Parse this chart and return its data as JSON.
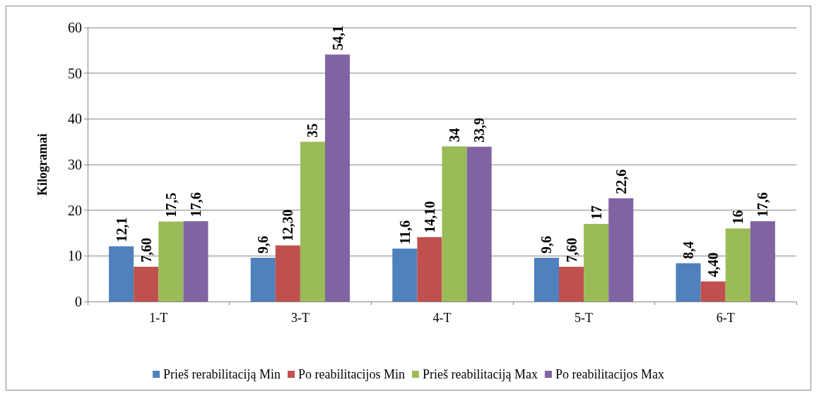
{
  "chart_data": {
    "type": "bar",
    "ylabel": "Kilogramai",
    "categories": [
      "1-T",
      "3-T",
      "4-T",
      "5-T",
      "6-T"
    ],
    "series": [
      {
        "name": "Prieš rerabilitaciją Min",
        "color": "#4f81bd",
        "values": [
          12.1,
          9.6,
          11.6,
          9.6,
          8.4
        ],
        "value_labels": [
          "12,1",
          "9,6",
          "11,6",
          "9,6",
          "8,4"
        ]
      },
      {
        "name": "Po reabilitacijos Min",
        "color": "#c0504d",
        "values": [
          7.6,
          12.3,
          14.1,
          7.6,
          4.4
        ],
        "value_labels": [
          "7,60",
          "12,30",
          "14,10",
          "7,60",
          "4,40"
        ]
      },
      {
        "name": "Prieš reabilitaciją Max",
        "color": "#9bbb59",
        "values": [
          17.5,
          35,
          34,
          17,
          16
        ],
        "value_labels": [
          "17,5",
          "35",
          "34",
          "17",
          "16"
        ]
      },
      {
        "name": "Po reabilitacijos Max",
        "color": "#8064a2",
        "values": [
          17.6,
          54.1,
          33.9,
          22.6,
          17.6
        ],
        "value_labels": [
          "17,6",
          "54,1",
          "33,9",
          "22,6",
          "17,6"
        ]
      }
    ],
    "ylim": [
      0,
      60
    ],
    "yticks": [
      0,
      10,
      20,
      30,
      40,
      50,
      60
    ],
    "grid": "y",
    "legend": "bottom"
  }
}
